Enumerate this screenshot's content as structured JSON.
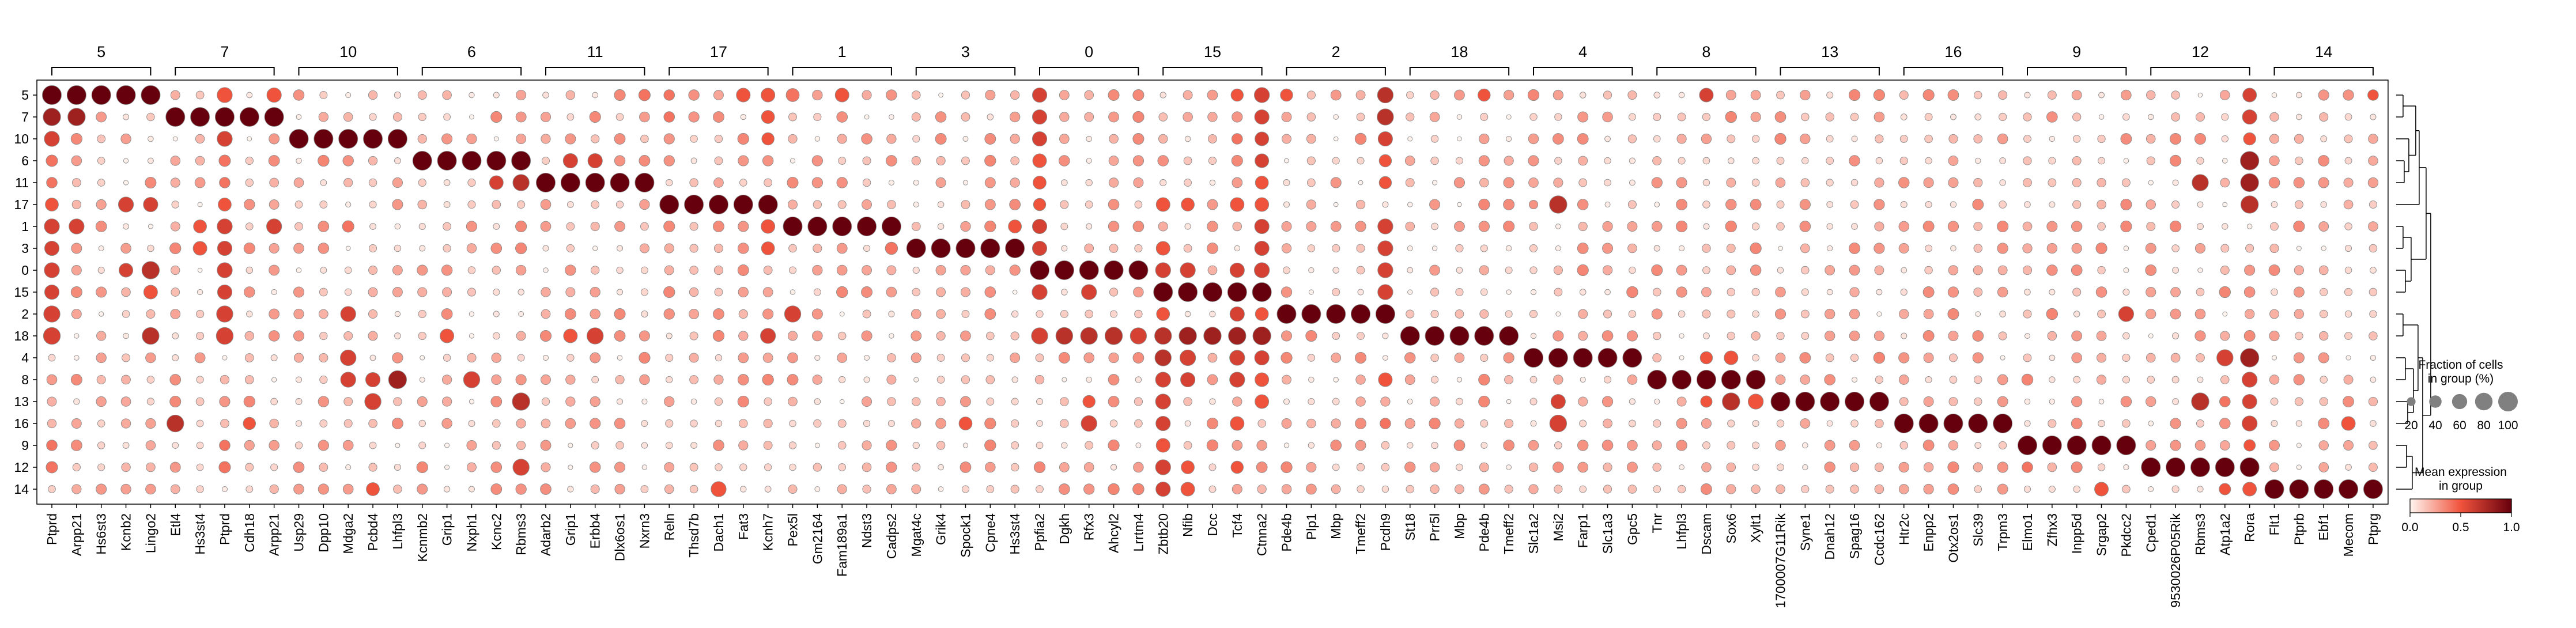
{
  "chart_data": {
    "type": "dotplot",
    "title": "",
    "xlabel": "",
    "ylabel": "",
    "cluster_order": [
      "5",
      "7",
      "10",
      "6",
      "11",
      "17",
      "1",
      "3",
      "0",
      "15",
      "2",
      "18",
      "4",
      "8",
      "13",
      "16",
      "9",
      "12",
      "14"
    ],
    "groups": [
      {
        "label": "5",
        "genes": [
          "Ptprd",
          "Arpp21",
          "Hs6st3",
          "Kcnb2",
          "Lingo2"
        ]
      },
      {
        "label": "7",
        "genes": [
          "Etl4",
          "Hs3st4",
          "Ptprd",
          "Cdh18",
          "Arpp21"
        ]
      },
      {
        "label": "10",
        "genes": [
          "Usp29",
          "Dpp10",
          "Mdga2",
          "Pcbd4",
          "Lhfpl3"
        ]
      },
      {
        "label": "6",
        "genes": [
          "Kcnmb2",
          "Grip1",
          "Nxph1",
          "Kcnc2",
          "Rbms3"
        ]
      },
      {
        "label": "11",
        "genes": [
          "Adarb2",
          "Grip1",
          "Erbb4",
          "Dlx6os1",
          "Nxrn3"
        ]
      },
      {
        "label": "17",
        "genes": [
          "Reln",
          "Thsd7b",
          "Dach1",
          "Fat3",
          "Kcnh7"
        ]
      },
      {
        "label": "1",
        "genes": [
          "Pex5l",
          "Gm2164",
          "Fam189a1",
          "Ndst3",
          "Cadps2"
        ]
      },
      {
        "label": "3",
        "genes": [
          "Mgat4c",
          "Grik4",
          "Spock1",
          "Cpne4",
          "Hs3st4"
        ]
      },
      {
        "label": "0",
        "genes": [
          "Ppfia2",
          "Dgkh",
          "Rfx3",
          "Ahcyl2",
          "Lrrtm4"
        ]
      },
      {
        "label": "15",
        "genes": [
          "Zbtb20",
          "Nfib",
          "Dcc",
          "Tcf4",
          "Ctnna2"
        ]
      },
      {
        "label": "2",
        "genes": [
          "Pde4b",
          "Plp1",
          "Mbp",
          "Tmeff2",
          "Pcdh9"
        ]
      },
      {
        "label": "18",
        "genes": [
          "St18",
          "Prr5l",
          "Mbp",
          "Pde4b",
          "Tmeff2"
        ]
      },
      {
        "label": "4",
        "genes": [
          "Slc1a2",
          "Msi2",
          "Farp1",
          "Slc1a3",
          "Gpc5"
        ]
      },
      {
        "label": "8",
        "genes": [
          "Tnr",
          "Lhfpl3",
          "Dscam",
          "Sox6",
          "Xylt1"
        ]
      },
      {
        "label": "13",
        "genes": [
          "1700007G11Rik",
          "Syne1",
          "Dnah12",
          "Spag16",
          "Ccdc162"
        ]
      },
      {
        "label": "16",
        "genes": [
          "Htr2c",
          "Enpp2",
          "Otx2os1",
          "Slc39",
          "Trpm3"
        ]
      },
      {
        "label": "9",
        "genes": [
          "Elmo1",
          "Zfhx3",
          "Inpp5d",
          "Srgap2",
          "Pkdcc2"
        ]
      },
      {
        "label": "12",
        "genes": [
          "Cped1",
          "9530026P05Rik",
          "Rbms3",
          "Atp1a2",
          "Rora"
        ]
      },
      {
        "label": "14",
        "genes": [
          "Flt1",
          "Ptprb",
          "Ebf1",
          "Mecom",
          "Ptprg"
        ]
      }
    ],
    "cmap": {
      "low": "#fff5f0",
      "mid": "#f0533c",
      "high": "#67000d"
    },
    "size_legend": {
      "title_line1": "Fraction of cells",
      "title_line2": "in group (%)",
      "values": [
        20,
        40,
        60,
        80,
        100
      ],
      "ticks": [
        "20",
        "40",
        "60",
        "80",
        "100"
      ]
    },
    "color_legend": {
      "title_line1": "Mean expression",
      "title_line2": "in group",
      "range": [
        0.0,
        1.0
      ],
      "ticks": [
        "0.0",
        "0.5",
        "1.0"
      ]
    },
    "extra_expression": [
      [
        "5",
        "Ptprd",
        0.6,
        0.5
      ],
      [
        "5",
        "Arpp21",
        0.55,
        0.5
      ],
      [
        "5",
        "Nxrn3",
        0.35,
        0.4
      ],
      [
        "5",
        "Reln",
        0.3,
        0.4
      ],
      [
        "5",
        "Fat3",
        0.5,
        0.5
      ],
      [
        "5",
        "Kcnh7",
        0.5,
        0.5
      ],
      [
        "5",
        "Pex5l",
        0.45,
        0.4
      ],
      [
        "5",
        "Fam189a1",
        0.5,
        0.5
      ],
      [
        "5",
        "Ppfia2",
        0.55,
        0.6
      ],
      [
        "5",
        "Ctnna2",
        0.6,
        0.6
      ],
      [
        "5",
        "Pcdh9",
        0.65,
        0.7
      ],
      [
        "5",
        "Pde4b",
        0.4,
        0.5
      ],
      [
        "5",
        "Dscam",
        0.5,
        0.6
      ],
      [
        "5",
        "Rora",
        0.5,
        0.6
      ],
      [
        "5",
        "Ptprg",
        0.3,
        0.5
      ],
      [
        "5",
        "Tcf4",
        0.4,
        0.5
      ],
      [
        "7",
        "Ptprd",
        0.8,
        0.8
      ],
      [
        "7",
        "Arpp21",
        0.8,
        0.8
      ],
      [
        "7",
        "Ppfia2",
        0.55,
        0.6
      ],
      [
        "7",
        "Pcdh9",
        0.7,
        0.7
      ],
      [
        "7",
        "Reln",
        0.3,
        0.4
      ],
      [
        "7",
        "Kcnh7",
        0.45,
        0.5
      ],
      [
        "7",
        "Ctnna2",
        0.55,
        0.6
      ],
      [
        "7",
        "Rora",
        0.55,
        0.6
      ],
      [
        "10",
        "Mdga2",
        0.75,
        0.8
      ],
      [
        "10",
        "Ptprd",
        0.6,
        0.6
      ],
      [
        "10",
        "Ppfia2",
        0.55,
        0.6
      ],
      [
        "10",
        "Ctnna2",
        0.5,
        0.6
      ],
      [
        "10",
        "Pcdh9",
        0.55,
        0.6
      ],
      [
        "10",
        "Rora",
        0.4,
        0.5
      ],
      [
        "10",
        "Kcnh7",
        0.4,
        0.5
      ],
      [
        "10",
        "Tcf4",
        0.3,
        0.4
      ],
      [
        "6",
        "Grip1",
        0.55,
        0.6
      ],
      [
        "6",
        "Erbb4",
        0.55,
        0.6
      ],
      [
        "6",
        "Ppfia2",
        0.5,
        0.5
      ],
      [
        "6",
        "Ctnna2",
        0.5,
        0.6
      ],
      [
        "6",
        "Rora",
        0.9,
        0.8
      ],
      [
        "6",
        "Ptprd",
        0.35,
        0.4
      ],
      [
        "6",
        "Pcdh9",
        0.4,
        0.5
      ],
      [
        "11",
        "Kcnc2",
        0.5,
        0.6
      ],
      [
        "11",
        "Rbms3",
        0.7,
        0.7
      ],
      [
        "11",
        "Ppfia2",
        0.45,
        0.5
      ],
      [
        "11",
        "Ctnna2",
        0.45,
        0.5
      ],
      [
        "11",
        "Rora",
        0.85,
        0.8
      ],
      [
        "11",
        "Pcdh9",
        0.4,
        0.5
      ],
      [
        "11",
        "Ptprd",
        0.3,
        0.4
      ],
      [
        "17",
        "Ptprd",
        0.45,
        0.5
      ],
      [
        "17",
        "Kcnb2",
        0.6,
        0.6
      ],
      [
        "17",
        "Lingo2",
        0.55,
        0.6
      ],
      [
        "17",
        "Slc1a2",
        0.2,
        0.3
      ],
      [
        "17",
        "Msi2",
        0.8,
        0.7
      ],
      [
        "17",
        "Rora",
        0.8,
        0.7
      ],
      [
        "17",
        "Ppfia2",
        0.4,
        0.5
      ],
      [
        "17",
        "Ctnna2",
        0.5,
        0.5
      ],
      [
        "17",
        "Nfib",
        0.45,
        0.5
      ],
      [
        "17",
        "Zbtb20",
        0.5,
        0.5
      ],
      [
        "17",
        "Tcf4",
        0.5,
        0.5
      ],
      [
        "1",
        "Ptprd",
        0.6,
        0.6
      ],
      [
        "1",
        "Arpp21",
        0.6,
        0.6
      ],
      [
        "1",
        "Ppfia2",
        0.55,
        0.6
      ],
      [
        "1",
        "Pcdh9",
        0.6,
        0.6
      ],
      [
        "1",
        "Ctnna2",
        0.55,
        0.6
      ],
      [
        "1",
        "Kcnh7",
        0.5,
        0.5
      ],
      [
        "1",
        "Hs3st4",
        0.45,
        0.5
      ],
      [
        "1",
        "Mdga2",
        0.35,
        0.4
      ],
      [
        "3",
        "Ptprd",
        0.55,
        0.6
      ],
      [
        "3",
        "Ppfia2",
        0.55,
        0.6
      ],
      [
        "3",
        "Pcdh9",
        0.6,
        0.6
      ],
      [
        "3",
        "Ctnna2",
        0.55,
        0.6
      ],
      [
        "3",
        "Hs3st4",
        0.5,
        0.5
      ],
      [
        "3",
        "Kcnh7",
        0.45,
        0.5
      ],
      [
        "3",
        "Cadps2",
        0.4,
        0.4
      ],
      [
        "3",
        "Zbtb20",
        0.5,
        0.5
      ],
      [
        "0",
        "Ptprd",
        0.6,
        0.6
      ],
      [
        "0",
        "Kcnb2",
        0.5,
        0.6
      ],
      [
        "0",
        "Lingo2",
        0.8,
        0.7
      ],
      [
        "0",
        "Zbtb20",
        0.6,
        0.6
      ],
      [
        "0",
        "Nfib",
        0.6,
        0.6
      ],
      [
        "0",
        "Tcf4",
        0.55,
        0.6
      ],
      [
        "0",
        "Ctnna2",
        0.6,
        0.6
      ],
      [
        "0",
        "Pcdh9",
        0.6,
        0.6
      ],
      [
        "15",
        "Ptprd",
        0.55,
        0.6
      ],
      [
        "15",
        "Ppfia2",
        0.6,
        0.6
      ],
      [
        "15",
        "Rfx3",
        0.6,
        0.6
      ],
      [
        "15",
        "Pcdh9",
        0.6,
        0.6
      ],
      [
        "15",
        "Lingo2",
        0.5,
        0.5
      ],
      [
        "2",
        "Ptprd",
        0.7,
        0.6
      ],
      [
        "2",
        "Mdga2",
        0.6,
        0.6
      ],
      [
        "2",
        "Pex5l",
        0.7,
        0.6
      ],
      [
        "2",
        "Zbtb20",
        0.45,
        0.5
      ],
      [
        "2",
        "Tcf4",
        0.55,
        0.6
      ],
      [
        "2",
        "Ctnna2",
        0.45,
        0.5
      ],
      [
        "2",
        "Pkdcc2",
        0.6,
        0.6
      ],
      [
        "18",
        "Ptprd",
        0.75,
        0.6
      ],
      [
        "18",
        "Lingo2",
        0.75,
        0.7
      ],
      [
        "18",
        "Ppfia2",
        0.7,
        0.6
      ],
      [
        "18",
        "Dgkh",
        0.75,
        0.7
      ],
      [
        "18",
        "Rfx3",
        0.75,
        0.7
      ],
      [
        "18",
        "Ahcyl2",
        0.8,
        0.7
      ],
      [
        "18",
        "Lrrtm4",
        0.7,
        0.6
      ],
      [
        "18",
        "Zbtb20",
        0.75,
        0.7
      ],
      [
        "18",
        "Nfib",
        0.8,
        0.8
      ],
      [
        "18",
        "Dcc",
        0.8,
        0.8
      ],
      [
        "18",
        "Tcf4",
        0.8,
        0.8
      ],
      [
        "18",
        "Ctnna2",
        0.85,
        0.8
      ],
      [
        "18",
        "Erbb4",
        0.7,
        0.6
      ],
      [
        "18",
        "Grip1",
        0.5,
        0.5
      ],
      [
        "18",
        "Kcnh7",
        0.6,
        0.6
      ],
      [
        "4",
        "Mdga2",
        0.65,
        0.6
      ],
      [
        "4",
        "Zbtb20",
        0.7,
        0.7
      ],
      [
        "4",
        "Nfib",
        0.65,
        0.6
      ],
      [
        "4",
        "Tcf4",
        0.6,
        0.6
      ],
      [
        "4",
        "Ctnna2",
        0.55,
        0.6
      ],
      [
        "4",
        "Sox6",
        0.5,
        0.5
      ],
      [
        "4",
        "Atp1a2",
        0.7,
        0.6
      ],
      [
        "4",
        "Rora",
        0.9,
        0.8
      ],
      [
        "4",
        "Dscam",
        0.4,
        0.5
      ],
      [
        "8",
        "Mdga2",
        0.6,
        0.6
      ],
      [
        "8",
        "Pcbd4",
        0.55,
        0.6
      ],
      [
        "8",
        "Lhfpl3",
        0.85,
        0.8
      ],
      [
        "8",
        "Nxph1",
        0.7,
        0.6
      ],
      [
        "8",
        "Zbtb20",
        0.6,
        0.6
      ],
      [
        "8",
        "Nfib",
        0.55,
        0.6
      ],
      [
        "8",
        "Tcf4",
        0.6,
        0.6
      ],
      [
        "8",
        "Ctnna2",
        0.5,
        0.5
      ],
      [
        "8",
        "Pcdh9",
        0.5,
        0.5
      ],
      [
        "8",
        "Rora",
        0.6,
        0.6
      ],
      [
        "13",
        "Zbtb20",
        0.6,
        0.6
      ],
      [
        "13",
        "Ctnna2",
        0.5,
        0.5
      ],
      [
        "13",
        "Rfx3",
        0.4,
        0.5
      ],
      [
        "13",
        "Msi2",
        0.55,
        0.6
      ],
      [
        "13",
        "Dscam",
        0.35,
        0.5
      ],
      [
        "13",
        "Atp1a2",
        0.3,
        0.4
      ],
      [
        "13",
        "Rora",
        0.55,
        0.6
      ],
      [
        "13",
        "Rbms3",
        0.8,
        0.7
      ],
      [
        "13",
        "Pcbd4",
        0.7,
        0.6
      ],
      [
        "13",
        "Sox6",
        0.8,
        0.7
      ],
      [
        "13",
        "Xylt1",
        0.6,
        0.5
      ],
      [
        "16",
        "Etl4",
        0.75,
        0.7
      ],
      [
        "16",
        "Cdh18",
        0.4,
        0.5
      ],
      [
        "16",
        "Rfx3",
        0.65,
        0.6
      ],
      [
        "16",
        "Zbtb20",
        0.55,
        0.6
      ],
      [
        "16",
        "Tcf4",
        0.5,
        0.5
      ],
      [
        "16",
        "Msi2",
        0.75,
        0.6
      ],
      [
        "16",
        "Pcdh9",
        0.3,
        0.4
      ],
      [
        "16",
        "Mecom",
        0.5,
        0.5
      ],
      [
        "16",
        "Rora",
        0.6,
        0.6
      ],
      [
        "16",
        "Spock1",
        0.45,
        0.5
      ],
      [
        "9",
        "Zbtb20",
        0.5,
        0.5
      ],
      [
        "9",
        "Ptprd",
        0.3,
        0.4
      ],
      [
        "9",
        "Rora",
        0.35,
        0.5
      ],
      [
        "12",
        "Zbtb20",
        0.6,
        0.6
      ],
      [
        "12",
        "Rbms3",
        0.7,
        0.6
      ],
      [
        "12",
        "Ptprd",
        0.35,
        0.4
      ],
      [
        "12",
        "Nfib",
        0.45,
        0.5
      ],
      [
        "12",
        "Tcf4",
        0.4,
        0.5
      ],
      [
        "12",
        "Elmo1",
        0.3,
        0.4
      ],
      [
        "12",
        "Cped1",
        0.45,
        0.5
      ],
      [
        "12",
        "Rora",
        0.5,
        0.6
      ],
      [
        "14",
        "Zbtb20",
        0.55,
        0.6
      ],
      [
        "14",
        "Nfib",
        0.5,
        0.5
      ],
      [
        "14",
        "Pcbd4",
        0.45,
        0.5
      ],
      [
        "14",
        "Dach1",
        0.6,
        0.5
      ],
      [
        "14",
        "Rora",
        0.5,
        0.5
      ],
      [
        "14",
        "Srgap2",
        0.5,
        0.5
      ],
      [
        "14",
        "Atp1a2",
        0.35,
        0.5
      ]
    ]
  }
}
